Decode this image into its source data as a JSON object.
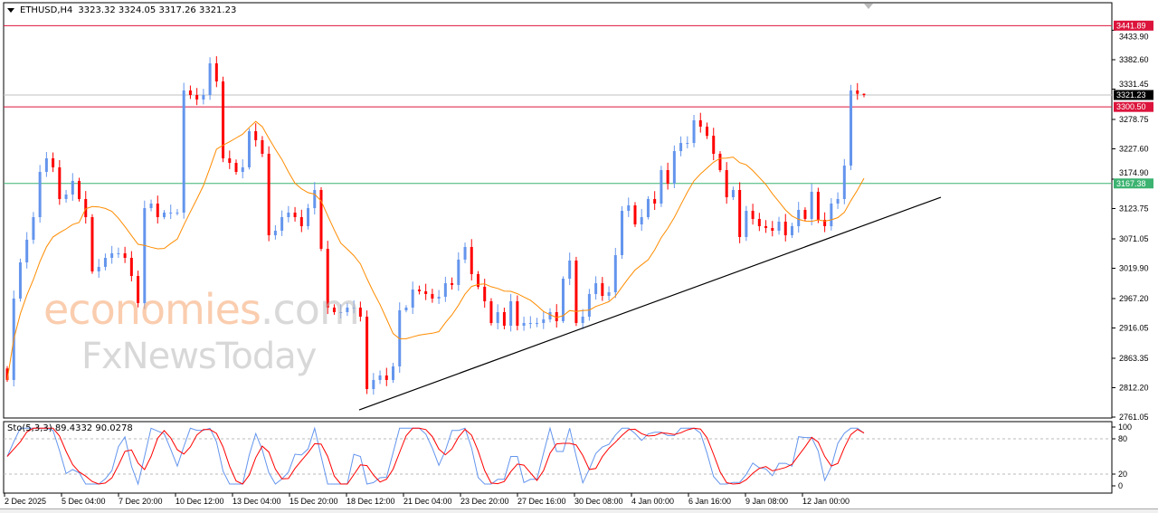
{
  "header": {
    "symbol": "ETHUSD,H4",
    "ohlc": "3323.32 3324.05 3317.26 3321.23",
    "menu_icon": "triangle-down-icon"
  },
  "indicator": {
    "label": "Sto(5,3,3) 89.4332 90.0278"
  },
  "watermark": {
    "line1": "economies",
    "line1_suffix": ".com",
    "line2": "FxNewsToday"
  },
  "colors": {
    "bull": "#6495ED",
    "bear": "#FF0000",
    "ma": "#FF8C00",
    "resistance": "#DC143C",
    "support": "#3CB371",
    "bid": "#C0C0C0",
    "trendline": "#000000",
    "stoch_main": "#6495ED",
    "stoch_signal": "#FF0000"
  },
  "chart_data": {
    "type": "candlestick",
    "symbol": "ETHUSD",
    "timeframe": "H4",
    "ylim": [
      2761.05,
      3441.89
    ],
    "price_ticks": [
      "3433.90",
      "3382.60",
      "3331.45",
      "3278.75",
      "3227.60",
      "3174.90",
      "3123.75",
      "3071.05",
      "3019.90",
      "2967.20",
      "2916.05",
      "2863.35",
      "2812.20",
      "2761.05"
    ],
    "time_ticks": [
      "2 Dec 2025",
      "5 Dec 04:00",
      "7 Dec 20:00",
      "10 Dec 12:00",
      "13 Dec 04:00",
      "15 Dec 20:00",
      "18 Dec 12:00",
      "21 Dec 04:00",
      "23 Dec 20:00",
      "27 Dec 16:00",
      "30 Dec 08:00",
      "4 Jan 00:00",
      "6 Jan 16:00",
      "9 Jan 08:00",
      "12 Jan 00:00"
    ],
    "closes": [
      2825.6,
      2967.2,
      3030.1,
      3069.5,
      3108.8,
      3187.5,
      3211.1,
      3195.4,
      3140.3,
      3148.1,
      3171.8,
      3140.3,
      3108.8,
      3014.4,
      3022.3,
      3038.0,
      3045.9,
      3045.9,
      3038.0,
      3006.5,
      2959.3,
      3124.5,
      3132.4,
      3108.8,
      3116.7,
      3116.7,
      3116.7,
      3329.1,
      3321.2,
      3313.4,
      3321.2,
      3376.3,
      3344.8,
      3211.1,
      3203.2,
      3187.5,
      3195.4,
      3258.3,
      3242.6,
      3219.0,
      3077.3,
      3085.2,
      3108.8,
      3116.7,
      3108.8,
      3093.1,
      3124.5,
      3156.0,
      3053.7,
      2951.5,
      2943.6,
      2943.6,
      2951.5,
      2951.5,
      2935.7,
      2809.8,
      2825.6,
      2833.4,
      2825.6,
      2849.2,
      2946.7,
      2951.5,
      2982.9,
      2979.8,
      2975.1,
      2967.2,
      2970.3,
      2993.9,
      2990.8,
      3034.9,
      3056.9,
      3009.7,
      2987.7,
      2962.5,
      2924.7,
      2943.6,
      2920.0,
      2962.5,
      2920.0,
      2924.7,
      2924.7,
      2924.7,
      2931.0,
      2943.6,
      2927.9,
      3001.8,
      3033.3,
      2924.7,
      2935.7,
      2975.1,
      2993.9,
      2971.9,
      2978.2,
      3042.7,
      3119.8,
      3129.3,
      3096.2,
      3108.8,
      3140.3,
      3132.4,
      3190.6,
      3167.0,
      3223.7,
      3237.8,
      3237.8,
      3277.2,
      3266.2,
      3250.4,
      3219.0,
      3190.6,
      3143.4,
      3156.0,
      3074.2,
      3119.8,
      3105.7,
      3093.1,
      3089.9,
      3085.2,
      3100.9,
      3077.3,
      3093.1,
      3121.4,
      3105.7,
      3152.9,
      3104.1,
      3093.1,
      3132.4,
      3140.3,
      3198.5,
      3329.1,
      3323.3,
      3321.23
    ],
    "last": {
      "open": 3323.32,
      "high": 3324.05,
      "low": 3317.26,
      "close": 3321.23
    },
    "levels": [
      {
        "price": 3441.89,
        "label": "3441.89",
        "role": "resistance"
      },
      {
        "price": 3321.23,
        "label": "3321.23",
        "role": "bid"
      },
      {
        "price": 3300.5,
        "label": "3300.50",
        "role": "resistance"
      },
      {
        "price": 3167.38,
        "label": "3167.38",
        "role": "support"
      }
    ],
    "trendline": {
      "start_price": 2773.6,
      "start_time": "18 Dec",
      "end_price": 3143.4
    },
    "stochastic": {
      "params": "5,3,3",
      "main": 89.4332,
      "signal": 90.0278,
      "ylim": [
        0,
        100
      ],
      "levels": [
        20,
        80
      ],
      "ticks": [
        "100",
        "80",
        "20",
        "0"
      ]
    }
  }
}
